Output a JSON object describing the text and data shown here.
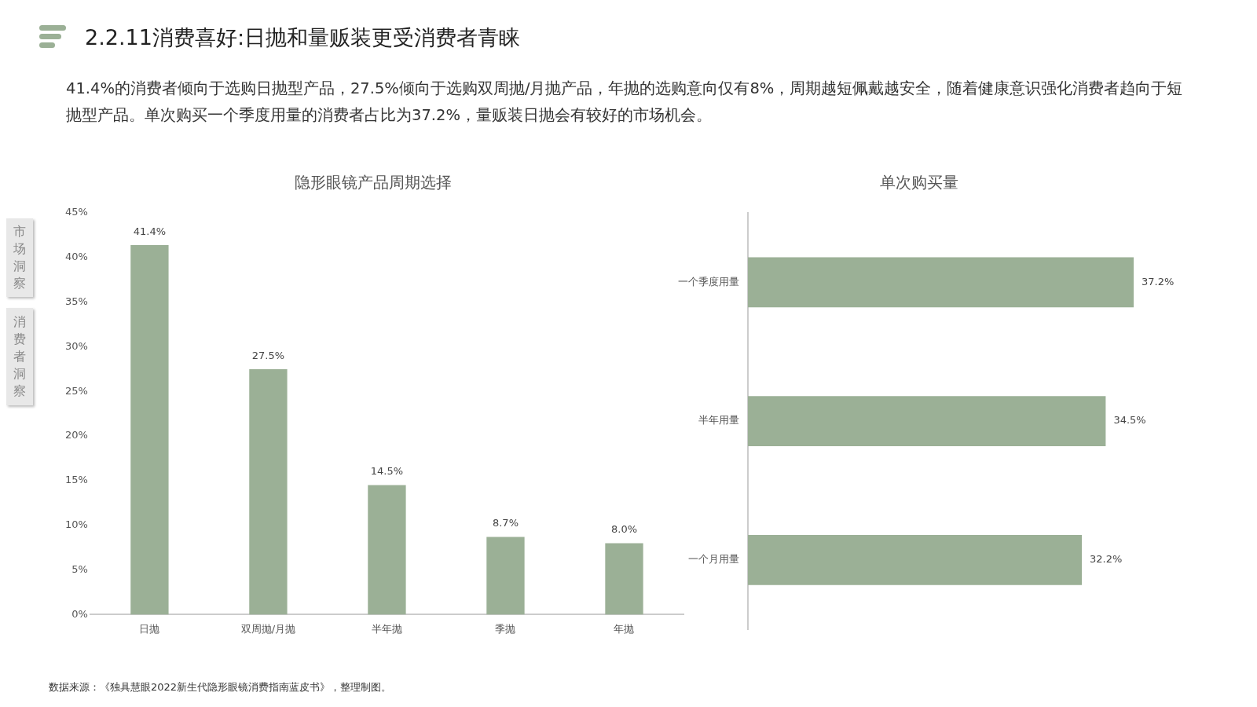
{
  "chart_data": [
    {
      "type": "other",
      "title": "2.2.11消费喜好:日抛和量贩装更受消费者青睐",
      "subtitle": "41.4%的消费者倾向于选购日抛型产品，27.5%倾向于选购双周抛/月抛产品，年抛的选购意向仅有8%，周期越短佩戴越安全，随着健康意识强化消费者趋向于短抛型产品。单次购买一个季度用量的消费者占比为37.2%，量贩装日抛会有较好的市场机会。",
      "annotations": [
        "市场洞察",
        "消费者洞察",
        "数据来源：《独具慧眼2022新生代隐形眼镜消费指南蓝皮书》，整理制图。"
      ]
    },
    {
      "type": "bar",
      "title": "隐形眼镜产品周期选择",
      "categories": [
        "日抛",
        "双周抛/月抛",
        "半年抛",
        "季抛",
        "年抛"
      ],
      "values": [
        41.4,
        27.5,
        14.5,
        8.7,
        8.0
      ],
      "value_labels": [
        "41.4%",
        "27.5%",
        "14.5%",
        "8.7%",
        "8.0%"
      ],
      "color": "#9bb096",
      "ylim": [
        0,
        45
      ],
      "yticks": [
        {
          "value": 0,
          "label": "0%"
        },
        {
          "value": 5,
          "label": "5%"
        },
        {
          "value": 10,
          "label": "10%"
        },
        {
          "value": 15,
          "label": "15%"
        },
        {
          "value": 20,
          "label": "20%"
        },
        {
          "value": 25,
          "label": "25%"
        },
        {
          "value": 30,
          "label": "30%"
        },
        {
          "value": 35,
          "label": "35%"
        },
        {
          "value": 40,
          "label": "40%"
        },
        {
          "value": 45,
          "label": "45%"
        }
      ],
      "grid": false,
      "legend": false
    },
    {
      "type": "bar",
      "orientation": "horizontal",
      "title": "单次购买量",
      "categories": [
        "一个季度用量",
        "半年用量",
        "一个月用量"
      ],
      "values": [
        37.2,
        34.5,
        32.2
      ],
      "value_labels": [
        "37.2%",
        "34.5%",
        "32.2%"
      ],
      "color": "#9bb096",
      "tick_labels": "y",
      "grid": false,
      "legend": false
    }
  ]
}
